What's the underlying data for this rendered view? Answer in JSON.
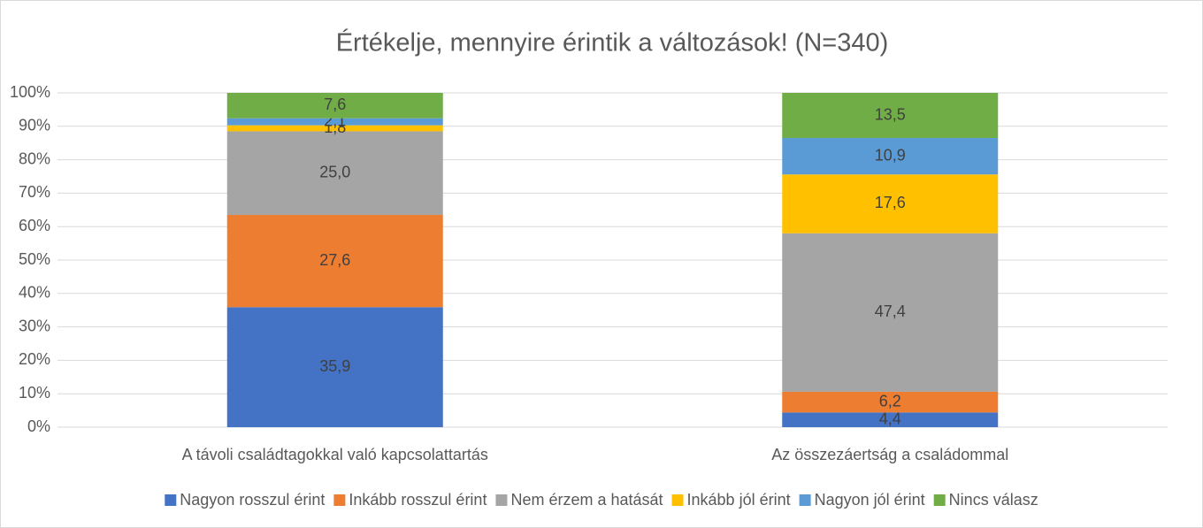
{
  "chart_data": {
    "type": "stacked_bar",
    "title": "Értékelje, mennyire érintik a változások! (N=340)",
    "categories": [
      "A távoli családtagokkal való kapcsolattartás",
      "Az összezáertság a családommal"
    ],
    "series": [
      {
        "name": "Nagyon rosszul érint",
        "color": "#4472c4",
        "values": [
          35.9,
          4.4
        ],
        "value_labels": [
          "35,9",
          "4,4"
        ]
      },
      {
        "name": "Inkább rosszul érint",
        "color": "#ed7d31",
        "values": [
          27.6,
          6.2
        ],
        "value_labels": [
          "27,6",
          "6,2"
        ]
      },
      {
        "name": "Nem érzem a hatását",
        "color": "#a5a5a5",
        "values": [
          25.0,
          47.4
        ],
        "value_labels": [
          "25,0",
          "47,4"
        ]
      },
      {
        "name": "Inkább jól érint",
        "color": "#ffc000",
        "values": [
          1.8,
          17.6
        ],
        "value_labels": [
          "1,8",
          "17,6"
        ]
      },
      {
        "name": "Nagyon jól érint",
        "color": "#5b9bd5",
        "values": [
          2.1,
          10.9
        ],
        "value_labels": [
          "2,1",
          "10,9"
        ]
      },
      {
        "name": "Nincs válasz",
        "color": "#70ad47",
        "values": [
          7.6,
          13.5
        ],
        "value_labels": [
          "7,6",
          "13,5"
        ]
      }
    ],
    "ylim": [
      0,
      100
    ],
    "yticks": [
      {
        "value": 0,
        "label": "0%"
      },
      {
        "value": 10,
        "label": "10%"
      },
      {
        "value": 20,
        "label": "20%"
      },
      {
        "value": 30,
        "label": "30%"
      },
      {
        "value": 40,
        "label": "40%"
      },
      {
        "value": 50,
        "label": "50%"
      },
      {
        "value": 60,
        "label": "60%"
      },
      {
        "value": 70,
        "label": "70%"
      },
      {
        "value": 80,
        "label": "80%"
      },
      {
        "value": 90,
        "label": "90%"
      },
      {
        "value": 100,
        "label": "100%"
      }
    ],
    "grid": true,
    "legend": "bottom"
  }
}
